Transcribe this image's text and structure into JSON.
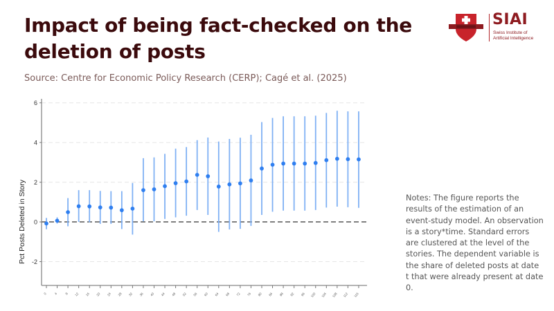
{
  "header": {
    "title": "Impact of being fact-checked on the deletion of posts",
    "source": "Source: Centre for Economic Policy Research (CERP); Cagé et al. (2025)"
  },
  "logo": {
    "brand": "SIAI",
    "subtitle_line1": "Swiss Institute of",
    "subtitle_line2": "Artificial Intelligence",
    "color": "#8e1b20"
  },
  "notes": "Notes: The figure reports the results of the estimation of an event-study model. An observation is a story*time. Standard errors are clustered at the level of the stories. The dependent variable is the share of deleted posts at date t that were already present at date 0.",
  "chart_data": {
    "type": "scatter",
    "subtype": "event-study coefficient plot with confidence intervals",
    "title": "Impact of being fact-checked on the deletion of posts",
    "xlabel": "",
    "ylabel": "Pct Posts Deleted in Story",
    "ylim": [
      -3.2,
      6.2
    ],
    "yticks": [
      -2,
      0,
      2,
      4,
      6
    ],
    "reference_line": 0,
    "grid": "horizontal dashed",
    "colors": {
      "point": "#2f7ff0",
      "ci": "#7fb0f4",
      "reference": "#444444"
    },
    "x": [
      0,
      4,
      8,
      12,
      16,
      20,
      24,
      28,
      32,
      36,
      40,
      44,
      48,
      52,
      56,
      60,
      64,
      68,
      72,
      76,
      80,
      84,
      88,
      92,
      96,
      100,
      104,
      108,
      112,
      116
    ],
    "xtick_labels": [
      "0",
      "4",
      "8",
      "12",
      "16",
      "20",
      "24",
      "28",
      "32",
      "36",
      "40",
      "44",
      "48",
      "52",
      "56",
      "60",
      "64",
      "68",
      "72",
      "76",
      "80",
      "84",
      "88",
      "92",
      "96",
      "100",
      "104",
      "108",
      "112",
      "116"
    ],
    "estimate": [
      -0.08,
      0.06,
      0.49,
      0.79,
      0.78,
      0.73,
      0.72,
      0.59,
      0.67,
      1.6,
      1.64,
      1.8,
      1.95,
      2.04,
      2.37,
      2.3,
      1.78,
      1.89,
      1.94,
      2.09,
      2.69,
      2.88,
      2.94,
      2.94,
      2.94,
      2.97,
      3.11,
      3.18,
      3.16,
      3.15
    ],
    "ci_upper": [
      0.2,
      0.23,
      1.2,
      1.6,
      1.6,
      1.56,
      1.55,
      1.55,
      1.96,
      3.21,
      3.25,
      3.43,
      3.69,
      3.77,
      4.12,
      4.25,
      4.05,
      4.18,
      4.24,
      4.39,
      5.03,
      5.24,
      5.32,
      5.32,
      5.32,
      5.35,
      5.49,
      5.6,
      5.57,
      5.57
    ],
    "ci_lower": [
      -0.37,
      -0.08,
      -0.22,
      0.0,
      -0.02,
      -0.1,
      -0.1,
      -0.36,
      -0.64,
      0.03,
      0.03,
      0.15,
      0.23,
      0.31,
      0.6,
      0.35,
      -0.5,
      -0.38,
      -0.35,
      -0.2,
      0.35,
      0.51,
      0.57,
      0.57,
      0.57,
      0.6,
      0.72,
      0.77,
      0.74,
      0.71
    ]
  }
}
